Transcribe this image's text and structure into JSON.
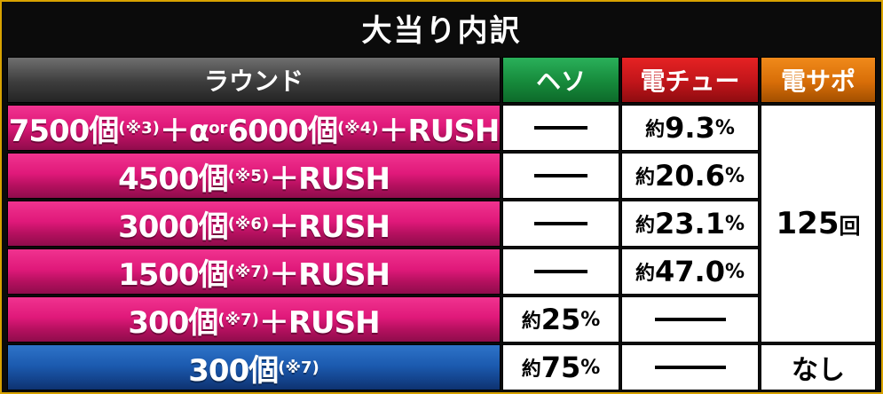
{
  "title": "大当り内訳",
  "headers": {
    "round": "ラウンド",
    "heso": "ヘソ",
    "denchu": "電チュー",
    "densapo": "電サポ"
  },
  "rows": [
    {
      "main_a": "7500個",
      "note_a": "(※3)",
      "main_b": "＋α",
      "or": "or",
      "main_c": "6000個",
      "note_c": "(※4)",
      "tail": "＋RUSH",
      "heso": "—",
      "denchu_pre": "約",
      "denchu_num": "9.3",
      "denchu_pct": "%"
    },
    {
      "main": "4500個",
      "note": "(※5)",
      "tail": "＋RUSH",
      "heso": "—",
      "denchu_pre": "約",
      "denchu_num": "20.6",
      "denchu_pct": "%"
    },
    {
      "main": "3000個",
      "note": "(※6)",
      "tail": "＋RUSH",
      "heso": "—",
      "denchu_pre": "約",
      "denchu_num": "23.1",
      "denchu_pct": "%"
    },
    {
      "main": "1500個",
      "note": "(※7)",
      "tail": "＋RUSH",
      "heso": "—",
      "denchu_pre": "約",
      "denchu_num": "47.0",
      "denchu_pct": "%"
    },
    {
      "main": "300個",
      "note": "(※7)",
      "tail": "＋RUSH",
      "heso_pre": "約",
      "heso_num": "25",
      "heso_pct": "%",
      "denchu": "—"
    },
    {
      "main": "300個",
      "note": "(※7)",
      "heso_pre": "約",
      "heso_num": "75",
      "heso_pct": "%",
      "denchu": "—",
      "densapo": "なし"
    }
  ],
  "densapo_merged": {
    "num": "125",
    "unit": "回"
  },
  "colors": {
    "pink": "#e0197a",
    "blue": "#1c5bb0",
    "green": "#168a3b",
    "red": "#c1151a",
    "orange": "#d86e08",
    "gray": "#3d3d3d",
    "border": "#d8a200"
  }
}
